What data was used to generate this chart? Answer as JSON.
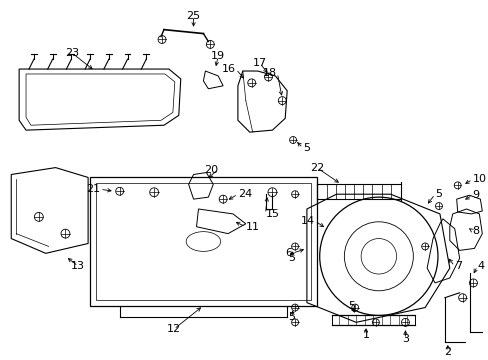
{
  "bg_color": "#ffffff",
  "line_color": "#000000",
  "fig_width": 4.89,
  "fig_height": 3.6,
  "dpi": 100,
  "font_size": 8
}
